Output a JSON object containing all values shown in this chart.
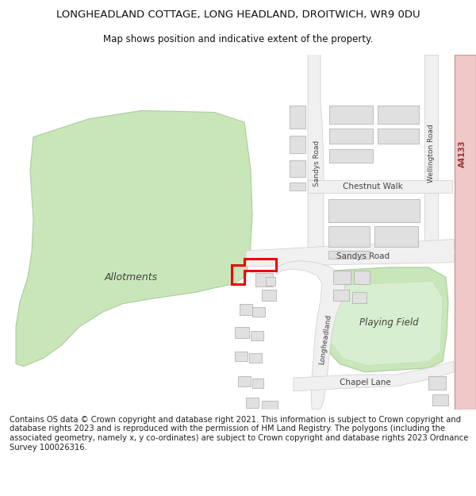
{
  "title_line1": "LONGHEADLAND COTTAGE, LONG HEADLAND, DROITWICH, WR9 0DU",
  "title_line2": "Map shows position and indicative extent of the property.",
  "footer_text": "Contains OS data © Crown copyright and database right 2021. This information is subject to Crown copyright and database rights 2023 and is reproduced with the permission of HM Land Registry. The polygons (including the associated geometry, namely x, y co-ordinates) are subject to Crown copyright and database rights 2023 Ordnance Survey 100026316.",
  "bg_color": "#ffffff",
  "allotments_color": "#c8e6b8",
  "allotments_outline": "#aacca0",
  "playing_field_color": "#c8e6b8",
  "playing_field_outline": "#aacca0",
  "building_fill": "#e0e0e0",
  "building_outline": "#aaaaaa",
  "road_fill": "#f0f0f0",
  "road_outline": "#cccccc",
  "a4133_color": "#f0c8c8",
  "a4133_outline": "#cc9999",
  "red_polygon_color": "#ee0000",
  "label_color": "#444444",
  "title_color": "#111111"
}
